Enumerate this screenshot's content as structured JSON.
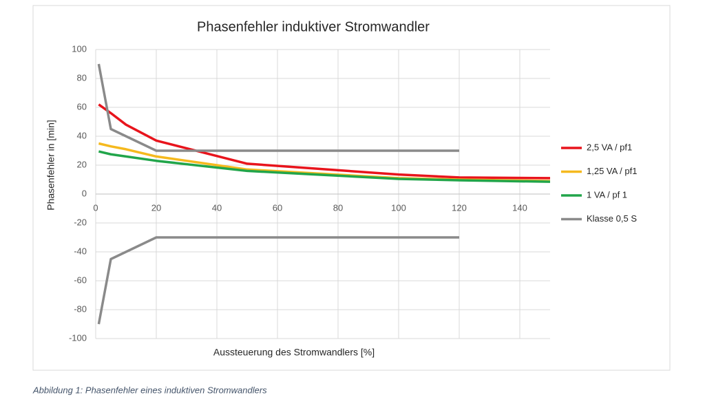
{
  "chart_data": {
    "type": "line",
    "title": "Phasenfehler induktiver Stromwandler",
    "x_label": "Aussteuerung des Stromwandlers [%]",
    "y_label": "Phasenfehler in [min]",
    "xlim": [
      0,
      150
    ],
    "xticks": [
      0,
      20,
      40,
      60,
      80,
      100,
      120,
      140
    ],
    "ylim": [
      -100,
      100
    ],
    "yticks": [
      -100,
      -80,
      -60,
      -40,
      -20,
      0,
      20,
      40,
      60,
      80,
      100
    ],
    "grid": true,
    "legend": "right",
    "series": [
      {
        "name": "2,5 VA / pf1",
        "color": "#e8141c",
        "x": [
          1,
          5,
          10,
          20,
          50,
          100,
          120,
          150
        ],
        "values": [
          62,
          56,
          48,
          37,
          21,
          13.5,
          11.5,
          11
        ]
      },
      {
        "name": "1,25 VA / pf1",
        "color": "#f5b91e",
        "x": [
          1,
          5,
          10,
          20,
          50,
          100,
          120,
          150
        ],
        "values": [
          35,
          33,
          31,
          26,
          17,
          11,
          10,
          9
        ]
      },
      {
        "name": "1 VA / pf 1",
        "color": "#21a54a",
        "x": [
          1,
          5,
          10,
          20,
          50,
          100,
          120,
          150
        ],
        "values": [
          29.5,
          27.5,
          26,
          23,
          16,
          10.5,
          9.5,
          8.5
        ]
      },
      {
        "name": "Klasse 0,5 S",
        "color": "#8a8a8a",
        "x": [
          1,
          5,
          20,
          120,
          null,
          1,
          5,
          20,
          120
        ],
        "values": [
          90,
          45,
          30,
          30,
          null,
          -90,
          -45,
          -30,
          -30
        ]
      }
    ]
  },
  "caption": "Abbildung 1: Phasenfehler eines induktiven Stromwandlers"
}
